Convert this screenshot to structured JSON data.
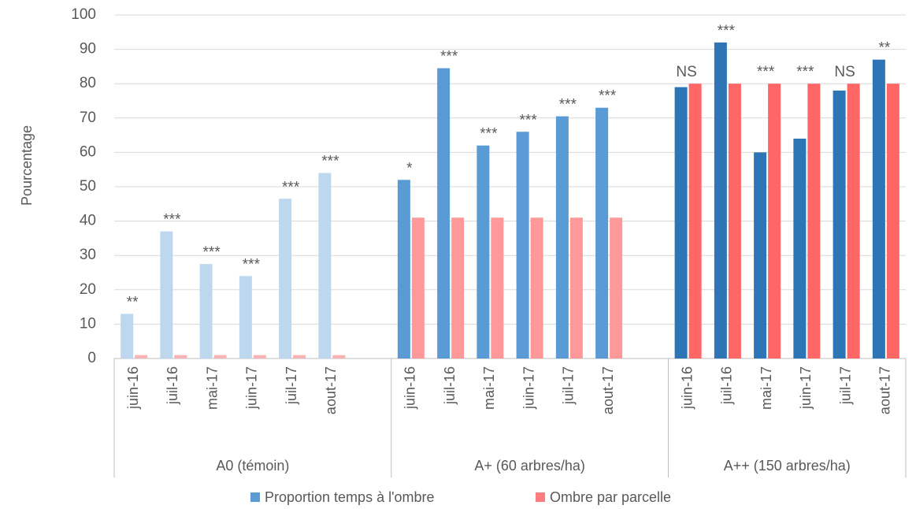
{
  "chart_data": {
    "type": "bar",
    "ylabel": "Pourcentage",
    "ylim": [
      0,
      100
    ],
    "yticks": [
      0,
      10,
      20,
      30,
      40,
      50,
      60,
      70,
      80,
      90,
      100
    ],
    "grid": true,
    "legend": "bottom",
    "series": [
      {
        "name": "Proportion temps à l'ombre",
        "color": "#5b9bd5"
      },
      {
        "name": "Ombre par parcelle",
        "color": "#ff7c80"
      }
    ],
    "groups": [
      {
        "name": "A0 (témoin)",
        "categories": [
          "juin-16",
          "juil-16",
          "mai-17",
          "juin-17",
          "juil-17",
          "aout-17",
          null
        ],
        "colors": [
          "#bdd7ee",
          "#f8b4b4"
        ],
        "values": [
          [
            13,
            37,
            27.5,
            24,
            46.5,
            54,
            null
          ],
          [
            1,
            1,
            1,
            1,
            1,
            1,
            null
          ]
        ],
        "annotations": [
          "**",
          "***",
          "***",
          "***",
          "***",
          "***",
          null
        ]
      },
      {
        "name": "A+ (60 arbres/ha)",
        "categories": [
          "juin-16",
          "juil-16",
          "mai-17",
          "juin-17",
          "juil-17",
          "aout-17",
          null
        ],
        "colors": [
          "#5b9bd5",
          "#ff9999"
        ],
        "values": [
          [
            52,
            84.5,
            62,
            66,
            70.5,
            73,
            null
          ],
          [
            41,
            41,
            41,
            41,
            41,
            41,
            null
          ]
        ],
        "annotations": [
          "*",
          "***",
          "***",
          "***",
          "***",
          "***",
          null
        ]
      },
      {
        "name": "A++ (150 arbres/ha)",
        "categories": [
          "juin-16",
          "juil-16",
          "mai-17",
          "juin-17",
          "juil-17",
          "aout-17"
        ],
        "colors": [
          "#2e75b6",
          "#ff6666"
        ],
        "values": [
          [
            79,
            92,
            60,
            64,
            78,
            87
          ],
          [
            80,
            80,
            80,
            80,
            80,
            80
          ]
        ],
        "annotations": [
          "NS",
          "***",
          "***",
          "***",
          "NS",
          "**"
        ]
      }
    ]
  }
}
